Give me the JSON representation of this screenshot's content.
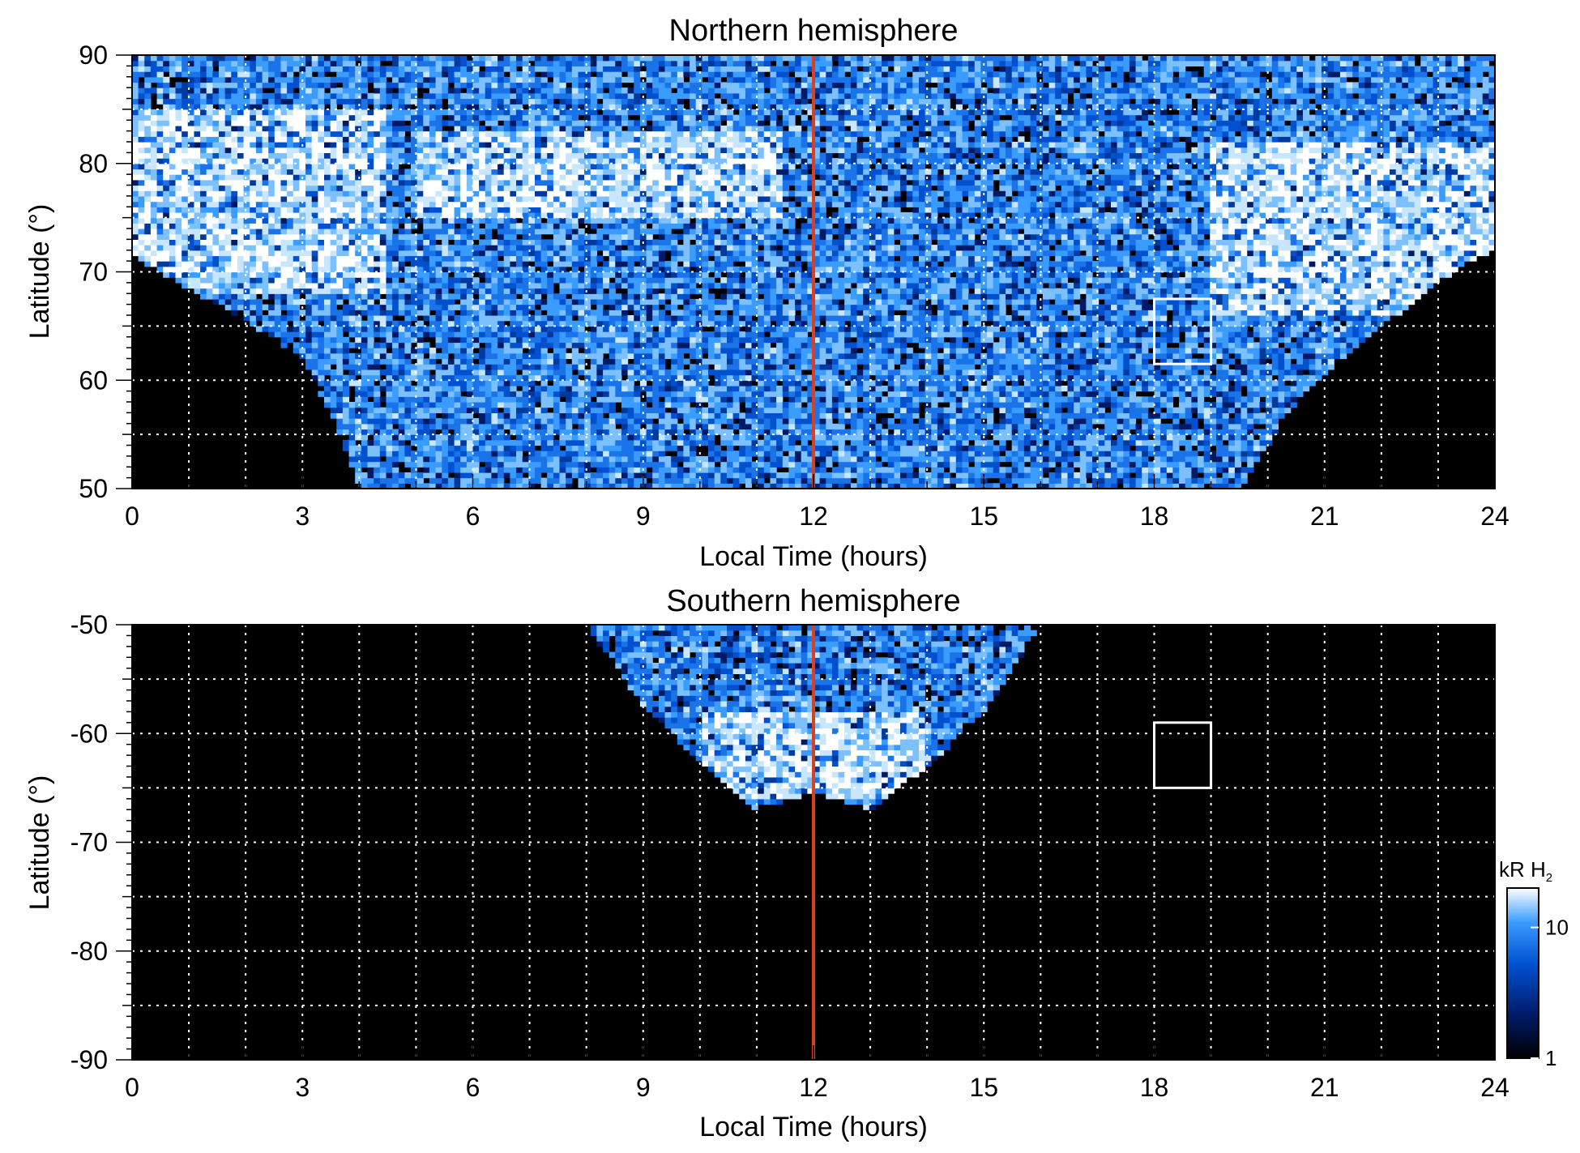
{
  "chart_data": [
    {
      "type": "heatmap",
      "title": "Northern hemisphere",
      "xlabel": "Local Time (hours)",
      "ylabel": "Latitude (°)",
      "xlim": [
        0,
        24
      ],
      "ylim": [
        50,
        90
      ],
      "x_ticks": [
        "0",
        "3",
        "6",
        "9",
        "12",
        "15",
        "18",
        "21",
        "24"
      ],
      "y_ticks": [
        "50",
        "60",
        "70",
        "80",
        "90"
      ],
      "grid": true,
      "reference_line": {
        "x": 12,
        "color": "#d9411e"
      },
      "highlight_box": {
        "x_range": [
          18,
          19
        ],
        "y_range": [
          61.5,
          67.5
        ],
        "color": "#ffffff"
      },
      "emission_coverage": [
        {
          "lt": 0,
          "min_lat": 71.5
        },
        {
          "lt": 1,
          "min_lat": 68.5
        },
        {
          "lt": 2,
          "min_lat": 65.5
        },
        {
          "lt": 3,
          "min_lat": 62
        },
        {
          "lt": 3.5,
          "min_lat": 57
        },
        {
          "lt": 4,
          "min_lat": 50
        },
        {
          "lt": 19.5,
          "min_lat": 50
        },
        {
          "lt": 20.5,
          "min_lat": 58
        },
        {
          "lt": 21.5,
          "min_lat": 63
        },
        {
          "lt": 22.5,
          "min_lat": 67
        },
        {
          "lt": 23.5,
          "min_lat": 71
        },
        {
          "lt": 24,
          "min_lat": 72
        }
      ],
      "bright_regions": [
        {
          "lt_range": [
            0,
            4.5
          ],
          "lat_range": [
            68,
            85
          ],
          "level": "high"
        },
        {
          "lt_range": [
            5,
            11.5
          ],
          "lat_range": [
            75,
            83
          ],
          "level": "high"
        },
        {
          "lt_range": [
            19,
            24
          ],
          "lat_range": [
            66,
            82
          ],
          "level": "high"
        }
      ]
    },
    {
      "type": "heatmap",
      "title": "Southern hemisphere",
      "xlabel": "Local Time (hours)",
      "ylabel": "Latitude (°)",
      "xlim": [
        0,
        24
      ],
      "ylim": [
        -90,
        -50
      ],
      "x_ticks": [
        "0",
        "3",
        "6",
        "9",
        "12",
        "15",
        "18",
        "21",
        "24"
      ],
      "y_ticks": [
        "-50",
        "-60",
        "-70",
        "-80",
        "-90"
      ],
      "grid": true,
      "reference_line": {
        "x": 12,
        "color": "#d9411e"
      },
      "highlight_box": {
        "x_range": [
          18,
          19
        ],
        "y_range": [
          -65,
          -59
        ],
        "color": "#ffffff"
      },
      "emission_coverage": [
        {
          "lt": 8,
          "max_abs_lat": 50
        },
        {
          "lt": 9,
          "max_abs_lat": 57.5
        },
        {
          "lt": 10,
          "max_abs_lat": 62.5
        },
        {
          "lt": 11,
          "max_abs_lat": 67
        },
        {
          "lt": 12,
          "max_abs_lat": 65.5
        },
        {
          "lt": 13,
          "max_abs_lat": 67
        },
        {
          "lt": 14,
          "max_abs_lat": 63
        },
        {
          "lt": 15,
          "max_abs_lat": 58
        },
        {
          "lt": 16,
          "max_abs_lat": 50
        }
      ],
      "bright_regions": [
        {
          "lt_range": [
            10,
            14
          ],
          "lat_range": [
            -66,
            -58
          ],
          "level": "high"
        }
      ]
    }
  ],
  "colorbar": {
    "label_main": "kR H",
    "label_sub": "2",
    "ticks": [
      {
        "value": 1,
        "label": "1"
      },
      {
        "value": 10,
        "label": "10"
      }
    ],
    "range": [
      1,
      20
    ],
    "scale": "log",
    "colors": [
      "#000000",
      "#001a66",
      "#0050d0",
      "#3b9cff",
      "#ffffff"
    ]
  }
}
